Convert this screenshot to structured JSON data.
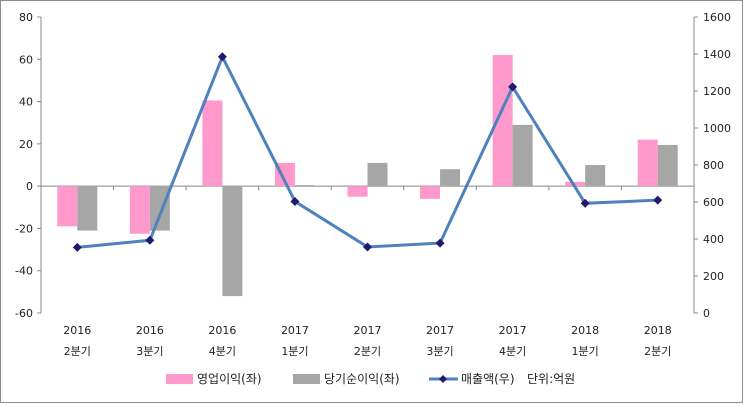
{
  "chart_data": {
    "type": "bar+line",
    "categories": [
      [
        "2016",
        "2분기"
      ],
      [
        "2016",
        "3분기"
      ],
      [
        "2016",
        "4분기"
      ],
      [
        "2017",
        "1분기"
      ],
      [
        "2017",
        "2분기"
      ],
      [
        "2017",
        "3분기"
      ],
      [
        "2017",
        "4분기"
      ],
      [
        "2018",
        "1분기"
      ],
      [
        "2018",
        "2분기"
      ]
    ],
    "series": [
      {
        "name": "영업이익(좌)",
        "type": "bar",
        "axis": "left",
        "color": "#ff99cc",
        "values": [
          -19,
          -22.5,
          40.5,
          11,
          -5,
          -6,
          62,
          2,
          22
        ]
      },
      {
        "name": "당기순이익(좌)",
        "type": "bar",
        "axis": "left",
        "color": "#a6a6a6",
        "values": [
          -21,
          -21,
          -52,
          0.5,
          11,
          8,
          29,
          10,
          19.5
        ]
      },
      {
        "name": "매출액(우)",
        "type": "line",
        "axis": "right",
        "color": "#4f81bd",
        "marker_color": "#1f1a6b",
        "values": [
          355,
          393,
          1385,
          603,
          357,
          378,
          1222,
          593,
          610
        ]
      }
    ],
    "left_axis": {
      "min": -60,
      "max": 80,
      "ticks": [
        "-60",
        "-40",
        "-20",
        "0",
        "20",
        "40",
        "60",
        "80"
      ]
    },
    "right_axis": {
      "min": 0,
      "max": 1600,
      "ticks": [
        "0",
        "200",
        "400",
        "600",
        "800",
        "1000",
        "1200",
        "1400",
        "1600"
      ]
    },
    "unit_note": "단위:억원",
    "grid": false,
    "legend_position": "bottom"
  }
}
